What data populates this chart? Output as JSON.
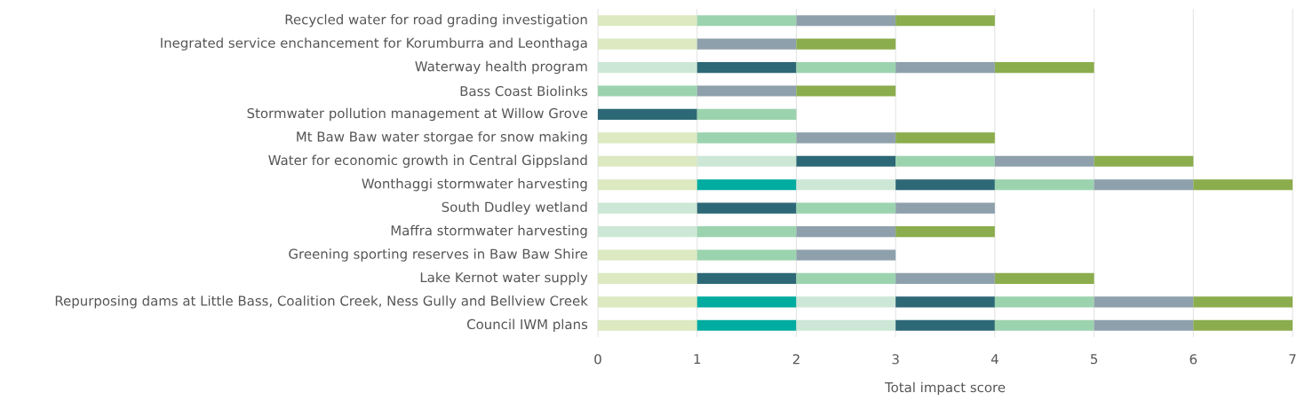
{
  "chart_data": {
    "type": "bar",
    "orientation": "horizontal",
    "stacked": true,
    "xlabel": "Total impact score",
    "categories": [
      "Recycled water for road grading investigation",
      "Inegrated service enchancement for Korumburra and Leonthaga",
      "Waterway health program",
      "Bass Coast Biolinks",
      "Stormwater pollution management at Willow Grove",
      "Mt Baw Baw water storgae for snow making",
      "Water for economic growth in Central Gippsland",
      "Wonthaggi stormwater harvesting",
      "South Dudley wetland",
      "Maffra stormwater harvesting",
      "Greening sporting reserves in Baw Baw Shire",
      "Lake Kernot water supply",
      "Repurposing dams at Little Bass, Coalition Creek, Ness Gully and Bellview Creek",
      "Council IWM plans"
    ],
    "series": [
      {
        "color": "#dce9c1",
        "values": [
          1,
          1,
          null,
          null,
          null,
          1,
          1,
          1,
          null,
          null,
          1,
          1,
          1,
          1
        ]
      },
      {
        "color": "#00ab9f",
        "values": [
          null,
          null,
          null,
          null,
          null,
          null,
          null,
          1,
          null,
          null,
          null,
          null,
          1,
          1
        ]
      },
      {
        "color": "#cde7d6",
        "values": [
          null,
          null,
          1,
          null,
          null,
          null,
          1,
          1,
          1,
          1,
          null,
          null,
          1,
          1
        ]
      },
      {
        "color": "#2d6876",
        "values": [
          null,
          null,
          1,
          null,
          1,
          null,
          1,
          1,
          1,
          null,
          null,
          1,
          1,
          1
        ]
      },
      {
        "color": "#9bd3ae",
        "values": [
          1,
          null,
          1,
          1,
          1,
          1,
          1,
          1,
          1,
          1,
          1,
          1,
          1,
          1
        ]
      },
      {
        "color": "#8ea0ac",
        "values": [
          1,
          1,
          1,
          1,
          null,
          1,
          1,
          1,
          1,
          1,
          1,
          1,
          1,
          1
        ]
      },
      {
        "color": "#8bad4d",
        "values": [
          1,
          1,
          1,
          1,
          null,
          1,
          1,
          1,
          null,
          1,
          null,
          1,
          1,
          1
        ]
      }
    ],
    "xlim": [
      0,
      7
    ],
    "xticks": [
      0,
      1,
      2,
      3,
      4,
      5,
      6,
      7
    ],
    "grid": "x"
  }
}
